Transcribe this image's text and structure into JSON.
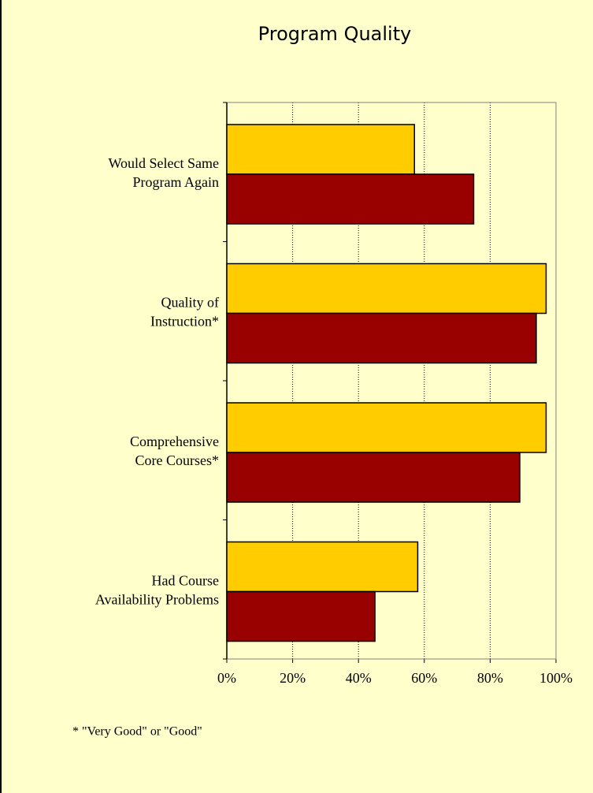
{
  "chart_data": {
    "type": "barh",
    "title": "Program Quality",
    "categories": [
      "Would Select Same\nProgram Again",
      "Quality of\nInstruction*",
      "Comprehensive\nCore Courses*",
      "Had Course\nAvailability Problems"
    ],
    "series": [
      {
        "color": "#ffcc00",
        "values": [
          57,
          97,
          97,
          58
        ]
      },
      {
        "color": "#990000",
        "values": [
          75,
          94,
          89,
          45
        ]
      }
    ],
    "xlim": [
      0,
      100
    ],
    "xticks": [
      {
        "value": 0,
        "label": "0%"
      },
      {
        "value": 20,
        "label": "20%"
      },
      {
        "value": 40,
        "label": "40%"
      },
      {
        "value": 60,
        "label": "60%"
      },
      {
        "value": 80,
        "label": "80%"
      },
      {
        "value": 100,
        "label": "100%"
      }
    ],
    "grid": true,
    "footnote": "* \"Very Good\" or \"Good\""
  }
}
